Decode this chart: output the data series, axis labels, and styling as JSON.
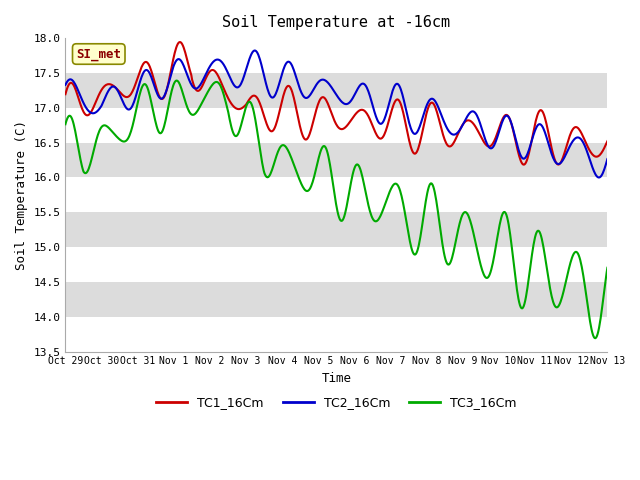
{
  "title": "Soil Temperature at -16cm",
  "xlabel": "Time",
  "ylabel": "Soil Temperature (C)",
  "ylim": [
    13.5,
    18.0
  ],
  "yticks": [
    13.5,
    14.0,
    14.5,
    15.0,
    15.5,
    16.0,
    16.5,
    17.0,
    17.5,
    18.0
  ],
  "xtick_labels": [
    "Oct 29",
    "Oct 30",
    "Oct 31",
    "Nov 1",
    "Nov 2",
    "Nov 3",
    "Nov 4",
    "Nov 5",
    "Nov 6",
    "Nov 7",
    "Nov 8",
    "Nov 9",
    "Nov 10",
    "Nov 11",
    "Nov 12",
    "Nov 13"
  ],
  "legend_labels": [
    "TC1_16Cm",
    "TC2_16Cm",
    "TC3_16Cm"
  ],
  "colors": [
    "#cc0000",
    "#0000cc",
    "#00aa00"
  ],
  "annotation_text": "SI_met",
  "annotation_bg": "#ffffcc",
  "annotation_border": "#888800",
  "stripe_color": "#dcdcdc",
  "linewidth": 1.5
}
